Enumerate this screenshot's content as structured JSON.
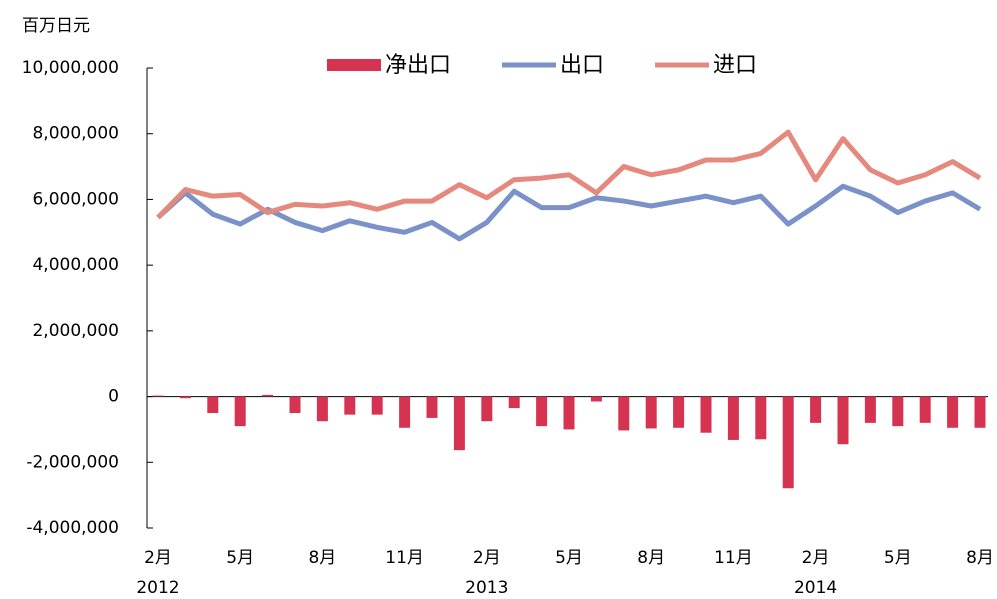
{
  "chart_data": {
    "type": "bar_line",
    "y_axis_label": "百万日元",
    "categories": [
      "2月",
      null,
      null,
      "5月",
      null,
      null,
      "8月",
      null,
      null,
      "11月",
      null,
      null,
      "2月",
      null,
      null,
      "5月",
      null,
      null,
      "8月",
      null,
      null,
      "11月",
      null,
      null,
      "2月",
      null,
      null,
      "5月",
      null,
      null,
      "8月"
    ],
    "x_group_labels": [
      "2012",
      null,
      null,
      null,
      null,
      null,
      null,
      null,
      null,
      null,
      null,
      null,
      "2013",
      null,
      null,
      null,
      null,
      null,
      null,
      null,
      null,
      null,
      null,
      null,
      "2014",
      null,
      null,
      null,
      null,
      null,
      null
    ],
    "series": [
      {
        "name": "净出口",
        "kind": "bar",
        "color": "#d5334f",
        "values": [
          30000,
          -50000,
          -500000,
          -900000,
          50000,
          -500000,
          -750000,
          -550000,
          -550000,
          -950000,
          -650000,
          -1630000,
          -750000,
          -350000,
          -900000,
          -1000000,
          -150000,
          -1030000,
          -970000,
          -950000,
          -1100000,
          -1320000,
          -1300000,
          -2790000,
          -800000,
          -1450000,
          -800000,
          -900000,
          -800000,
          -950000,
          -950000
        ]
      },
      {
        "name": "出口",
        "kind": "line",
        "color": "#7a92c8",
        "values": [
          5450000,
          6200000,
          5550000,
          5250000,
          5700000,
          5300000,
          5050000,
          5350000,
          5150000,
          5000000,
          5300000,
          4800000,
          5300000,
          6250000,
          5750000,
          5750000,
          6050000,
          5950000,
          5800000,
          5950000,
          6100000,
          5900000,
          6100000,
          5250000,
          5800000,
          6400000,
          6100000,
          5600000,
          5950000,
          6200000,
          5700000
        ]
      },
      {
        "name": "进口",
        "kind": "line",
        "color": "#e5887d",
        "values": [
          5450000,
          6300000,
          6100000,
          6150000,
          5600000,
          5850000,
          5800000,
          5900000,
          5700000,
          5950000,
          5950000,
          6450000,
          6050000,
          6600000,
          6650000,
          6750000,
          6200000,
          7000000,
          6750000,
          6900000,
          7200000,
          7200000,
          7400000,
          8050000,
          6600000,
          7850000,
          6900000,
          6500000,
          6750000,
          7150000,
          6650000
        ]
      }
    ],
    "ylim": [
      -4000000,
      10000000
    ],
    "yticks": [
      {
        "value": -4000000,
        "label": "-4,000,000"
      },
      {
        "value": -2000000,
        "label": "-2,000,000"
      },
      0,
      {
        "value": 2000000,
        "label": "2,000,000"
      },
      {
        "value": 4000000,
        "label": "4,000,000"
      },
      {
        "value": 6000000,
        "label": "6,000,000"
      },
      {
        "value": 8000000,
        "label": "8,000,000"
      },
      {
        "value": 10000000,
        "label": "10,000,000"
      }
    ],
    "legend": "top"
  }
}
